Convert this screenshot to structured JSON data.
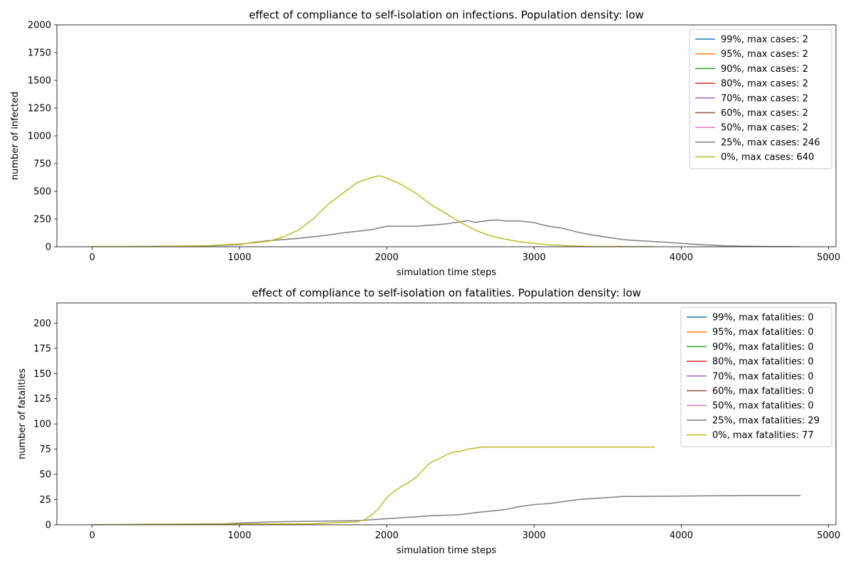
{
  "chart_data": [
    {
      "type": "line",
      "title": "effect of compliance to self-isolation on infections. Population density: low",
      "xlabel": "simulation time steps",
      "ylabel": "number of infected",
      "xlim": [
        -240,
        5050
      ],
      "ylim": [
        0,
        2000
      ],
      "xticks": [
        0,
        1000,
        2000,
        3000,
        4000,
        5000
      ],
      "yticks": [
        0,
        250,
        500,
        750,
        1000,
        1250,
        1500,
        1750,
        2000
      ],
      "grid": false,
      "legend_position": "upper-right",
      "series": [
        {
          "name": "99%, max cases: 2",
          "color": "#1f77b4",
          "x": [
            0,
            20,
            40,
            60
          ],
          "y": [
            2,
            2,
            1,
            0
          ]
        },
        {
          "name": "95%, max cases: 2",
          "color": "#ff7f0e",
          "x": [
            0,
            20,
            40,
            60
          ],
          "y": [
            2,
            2,
            1,
            0
          ]
        },
        {
          "name": "90%, max cases: 2",
          "color": "#2ca02c",
          "x": [
            0,
            20,
            40,
            60
          ],
          "y": [
            2,
            2,
            1,
            0
          ]
        },
        {
          "name": "80%, max cases: 2",
          "color": "#d62728",
          "x": [
            0,
            20,
            40,
            60
          ],
          "y": [
            2,
            2,
            1,
            0
          ]
        },
        {
          "name": "70%, max cases: 2",
          "color": "#9467bd",
          "x": [
            0,
            20,
            40,
            60
          ],
          "y": [
            2,
            2,
            1,
            0
          ]
        },
        {
          "name": "60%, max cases: 2",
          "color": "#8c564b",
          "x": [
            0,
            20,
            40,
            60
          ],
          "y": [
            2,
            2,
            1,
            0
          ]
        },
        {
          "name": "50%, max cases: 2",
          "color": "#e377c2",
          "x": [
            0,
            20,
            40,
            60
          ],
          "y": [
            2,
            2,
            1,
            0
          ]
        },
        {
          "name": "25%, max cases: 246",
          "color": "#7f7f7f",
          "x": [
            0,
            200,
            400,
            600,
            800,
            1000,
            1100,
            1200,
            1300,
            1400,
            1500,
            1600,
            1700,
            1800,
            1900,
            2000,
            2100,
            2200,
            2300,
            2400,
            2500,
            2550,
            2600,
            2700,
            2750,
            2800,
            2900,
            3000,
            3050,
            3100,
            3200,
            3300,
            3400,
            3500,
            3600,
            3700,
            3800,
            3900,
            4000,
            4100,
            4200,
            4300,
            4400,
            4500,
            4600,
            4700,
            4810
          ],
          "y": [
            2,
            2,
            3,
            5,
            8,
            20,
            40,
            55,
            65,
            75,
            90,
            105,
            125,
            140,
            155,
            185,
            185,
            185,
            195,
            205,
            225,
            235,
            220,
            238,
            242,
            232,
            232,
            218,
            200,
            185,
            165,
            130,
            105,
            85,
            65,
            55,
            48,
            40,
            30,
            22,
            14,
            8,
            5,
            3,
            2,
            1,
            0
          ]
        },
        {
          "name": "0%, max cases: 640",
          "color": "#bcbd22",
          "x": [
            0,
            200,
            400,
            600,
            800,
            1000,
            1100,
            1200,
            1300,
            1400,
            1500,
            1600,
            1700,
            1800,
            1900,
            1950,
            2000,
            2100,
            2200,
            2300,
            2400,
            2500,
            2600,
            2700,
            2800,
            2900,
            3000,
            3100,
            3200,
            3300,
            3400,
            3600,
            3820
          ],
          "y": [
            2,
            2,
            2,
            5,
            10,
            25,
            35,
            50,
            90,
            150,
            250,
            380,
            480,
            580,
            625,
            640,
            620,
            560,
            480,
            380,
            300,
            220,
            150,
            100,
            70,
            45,
            30,
            18,
            10,
            5,
            2,
            1,
            0
          ]
        }
      ]
    },
    {
      "type": "line",
      "title": "effect of compliance to self-isolation on fatalities. Population density: low",
      "xlabel": "simulation time steps",
      "ylabel": "number of fatalities",
      "xlim": [
        -240,
        5050
      ],
      "ylim": [
        0,
        220
      ],
      "xticks": [
        0,
        1000,
        2000,
        3000,
        4000,
        5000
      ],
      "yticks": [
        0,
        25,
        50,
        75,
        100,
        125,
        150,
        175,
        200
      ],
      "grid": false,
      "legend_position": "upper-right",
      "series": [
        {
          "name": "99%, max fatalities: 0",
          "color": "#1f77b4",
          "x": [
            0,
            60
          ],
          "y": [
            0,
            0
          ]
        },
        {
          "name": "95%, max fatalities: 0",
          "color": "#ff7f0e",
          "x": [
            0,
            60
          ],
          "y": [
            0,
            0
          ]
        },
        {
          "name": "90%, max fatalities: 0",
          "color": "#2ca02c",
          "x": [
            0,
            60
          ],
          "y": [
            0,
            0
          ]
        },
        {
          "name": "80%, max fatalities: 0",
          "color": "#d62728",
          "x": [
            0,
            60
          ],
          "y": [
            0,
            0
          ]
        },
        {
          "name": "70%, max fatalities: 0",
          "color": "#9467bd",
          "x": [
            0,
            60
          ],
          "y": [
            0,
            0
          ]
        },
        {
          "name": "60%, max fatalities: 0",
          "color": "#8c564b",
          "x": [
            0,
            60
          ],
          "y": [
            0,
            0
          ]
        },
        {
          "name": "50%, max fatalities: 0",
          "color": "#e377c2",
          "x": [
            0,
            60
          ],
          "y": [
            0,
            0
          ]
        },
        {
          "name": "25%, max fatalities: 29",
          "color": "#7f7f7f",
          "x": [
            0,
            900,
            1050,
            1250,
            1800,
            1900,
            2000,
            2200,
            2300,
            2500,
            2600,
            2800,
            2900,
            3000,
            3100,
            3200,
            3300,
            3400,
            3500,
            3600,
            4450,
            4810
          ],
          "y": [
            0,
            1,
            2,
            3,
            4,
            5,
            6,
            8,
            9,
            10,
            12,
            15,
            18,
            20,
            21,
            23,
            25,
            26,
            27,
            28,
            29,
            29
          ]
        },
        {
          "name": "0%, max fatalities: 77",
          "color": "#bcbd22",
          "x": [
            0,
            1500,
            1800,
            1850,
            1900,
            1950,
            2000,
            2050,
            2100,
            2150,
            2200,
            2250,
            2300,
            2350,
            2400,
            2450,
            2500,
            2550,
            2600,
            2650,
            3820
          ],
          "y": [
            0,
            1,
            3,
            5,
            10,
            17,
            27,
            33,
            38,
            42,
            47,
            55,
            62,
            65,
            69,
            72,
            73,
            75,
            76,
            77,
            77
          ]
        }
      ]
    }
  ]
}
